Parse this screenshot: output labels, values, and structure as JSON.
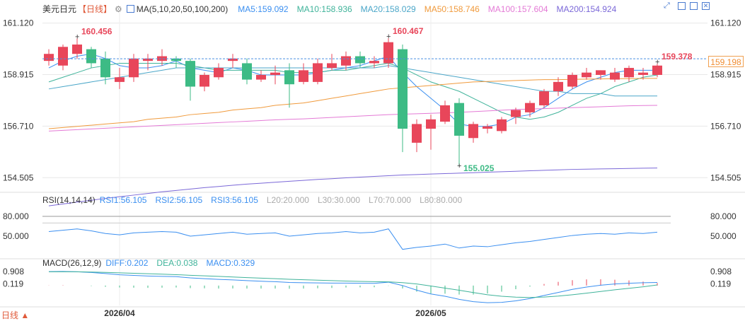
{
  "header": {
    "symbol": "美元日元",
    "period": "【日线】",
    "ma_label": "MA(5,10,20,50,100,200)",
    "ma_values": [
      {
        "label": "MA5:159.092",
        "color": "#3b8ff0"
      },
      {
        "label": "MA10:158.936",
        "color": "#3fb39a"
      },
      {
        "label": "MA20:158.029",
        "color": "#4aa6c8"
      },
      {
        "label": "MA50:158.746",
        "color": "#f09a3c"
      },
      {
        "label": "MA100:157.604",
        "color": "#e47ad6"
      },
      {
        "label": "MA200:154.924",
        "color": "#7b68d8"
      }
    ]
  },
  "rsi_header": {
    "label": "RSI(14,14,14)",
    "values": [
      {
        "label": "RSI1:56.105",
        "color": "#3b8ff0"
      },
      {
        "label": "RSI2:56.105",
        "color": "#3b8ff0"
      },
      {
        "label": "RSI3:56.105",
        "color": "#3b8ff0"
      },
      {
        "label": "L20:20.000",
        "color": "#aaaaaa"
      },
      {
        "label": "L30:30.000",
        "color": "#aaaaaa"
      },
      {
        "label": "L70:70.000",
        "color": "#aaaaaa"
      },
      {
        "label": "L80:80.000",
        "color": "#aaaaaa"
      }
    ]
  },
  "macd_header": {
    "label": "MACD(26,12,9)",
    "values": [
      {
        "label": "DIFF:0.202",
        "color": "#3b8ff0"
      },
      {
        "label": "DEA:0.038",
        "color": "#3fb39a"
      },
      {
        "label": "MACD:0.329",
        "color": "#3b8ff0"
      }
    ]
  },
  "current_price_tag": "159.198",
  "period_button": "日线 ▲",
  "icons": [
    "expand-icon",
    "indicator-icon",
    "settings-icon",
    "close-icon"
  ],
  "colors": {
    "up": "#e8465a",
    "down": "#3dbb85",
    "grid": "#e8e8e8",
    "axis_text": "#333333",
    "last_line": "#4a90e2"
  },
  "chart_data": [
    {
      "type": "candlestick",
      "name": "price",
      "x_labels": [
        "2026/04",
        "2026/05"
      ],
      "y_ticks": [
        161.12,
        158.915,
        156.71,
        154.505
      ],
      "ylim": [
        154.0,
        161.5
      ],
      "annotations": [
        {
          "text": "160.456",
          "candle": 2,
          "kind": "high"
        },
        {
          "text": "160.467",
          "candle": 24,
          "kind": "high"
        },
        {
          "text": "155.025",
          "candle": 29,
          "kind": "low"
        },
        {
          "text": "159.378",
          "candle": 43,
          "kind": "high"
        }
      ],
      "last_price": 159.198,
      "candles": [
        {
          "o": 159.5,
          "h": 160.0,
          "l": 159.3,
          "c": 159.8
        },
        {
          "o": 159.3,
          "h": 160.2,
          "l": 159.1,
          "c": 160.1
        },
        {
          "o": 159.8,
          "h": 160.456,
          "l": 159.6,
          "c": 160.2
        },
        {
          "o": 160.0,
          "h": 160.1,
          "l": 159.2,
          "c": 159.4
        },
        {
          "o": 159.6,
          "h": 159.9,
          "l": 158.5,
          "c": 158.8
        },
        {
          "o": 158.6,
          "h": 159.2,
          "l": 158.3,
          "c": 158.8
        },
        {
          "o": 158.8,
          "h": 159.8,
          "l": 158.6,
          "c": 159.6
        },
        {
          "o": 159.5,
          "h": 159.8,
          "l": 159.1,
          "c": 159.6
        },
        {
          "o": 159.5,
          "h": 160.0,
          "l": 159.3,
          "c": 159.7
        },
        {
          "o": 159.6,
          "h": 159.7,
          "l": 159.2,
          "c": 159.5
        },
        {
          "o": 159.5,
          "h": 159.6,
          "l": 157.8,
          "c": 158.4
        },
        {
          "o": 158.4,
          "h": 159.0,
          "l": 158.2,
          "c": 158.9
        },
        {
          "o": 158.8,
          "h": 159.4,
          "l": 158.7,
          "c": 159.2
        },
        {
          "o": 159.5,
          "h": 159.8,
          "l": 159.2,
          "c": 159.6
        },
        {
          "o": 159.4,
          "h": 159.6,
          "l": 158.5,
          "c": 158.7
        },
        {
          "o": 158.7,
          "h": 159.1,
          "l": 158.6,
          "c": 158.9
        },
        {
          "o": 158.9,
          "h": 159.3,
          "l": 158.5,
          "c": 159.0
        },
        {
          "o": 159.1,
          "h": 159.4,
          "l": 157.5,
          "c": 158.5
        },
        {
          "o": 158.6,
          "h": 159.4,
          "l": 158.5,
          "c": 159.1
        },
        {
          "o": 158.6,
          "h": 159.6,
          "l": 158.5,
          "c": 159.4
        },
        {
          "o": 159.2,
          "h": 159.8,
          "l": 159.1,
          "c": 159.4
        },
        {
          "o": 159.3,
          "h": 159.9,
          "l": 159.1,
          "c": 159.7
        },
        {
          "o": 159.7,
          "h": 159.9,
          "l": 159.2,
          "c": 159.4
        },
        {
          "o": 159.4,
          "h": 159.7,
          "l": 159.2,
          "c": 159.5
        },
        {
          "o": 159.4,
          "h": 160.467,
          "l": 159.2,
          "c": 160.3
        },
        {
          "o": 160.0,
          "h": 160.2,
          "l": 155.6,
          "c": 156.6
        },
        {
          "o": 156.0,
          "h": 157.0,
          "l": 155.6,
          "c": 156.8
        },
        {
          "o": 156.6,
          "h": 157.2,
          "l": 155.7,
          "c": 157.0
        },
        {
          "o": 156.9,
          "h": 157.8,
          "l": 156.8,
          "c": 157.6
        },
        {
          "o": 157.7,
          "h": 157.9,
          "l": 155.025,
          "c": 156.3
        },
        {
          "o": 156.2,
          "h": 156.9,
          "l": 156.0,
          "c": 156.8
        },
        {
          "o": 156.6,
          "h": 156.8,
          "l": 156.4,
          "c": 156.7
        },
        {
          "o": 156.5,
          "h": 157.1,
          "l": 156.4,
          "c": 157.0
        },
        {
          "o": 157.1,
          "h": 157.5,
          "l": 156.8,
          "c": 157.4
        },
        {
          "o": 157.3,
          "h": 157.8,
          "l": 157.1,
          "c": 157.7
        },
        {
          "o": 157.6,
          "h": 158.3,
          "l": 157.5,
          "c": 158.2
        },
        {
          "o": 158.2,
          "h": 158.8,
          "l": 158.0,
          "c": 158.6
        },
        {
          "o": 158.4,
          "h": 159.0,
          "l": 158.3,
          "c": 158.9
        },
        {
          "o": 158.8,
          "h": 159.2,
          "l": 158.7,
          "c": 159.0
        },
        {
          "o": 158.9,
          "h": 159.1,
          "l": 158.7,
          "c": 159.1
        },
        {
          "o": 158.7,
          "h": 159.2,
          "l": 158.6,
          "c": 159.0
        },
        {
          "o": 158.8,
          "h": 159.3,
          "l": 158.6,
          "c": 159.2
        },
        {
          "o": 158.9,
          "h": 159.2,
          "l": 158.7,
          "c": 159.0
        },
        {
          "o": 158.9,
          "h": 159.378,
          "l": 158.8,
          "c": 159.3
        }
      ],
      "series": [
        {
          "name": "MA5",
          "color": "#3b8ff0",
          "values": [
            159.2,
            159.5,
            159.7,
            159.8,
            159.6,
            159.3,
            159.2,
            159.2,
            159.3,
            159.5,
            159.2,
            159.1,
            159.0,
            159.2,
            159.1,
            158.9,
            158.9,
            158.9,
            158.9,
            159.0,
            159.1,
            159.2,
            159.3,
            159.5,
            159.7,
            159.0,
            158.4,
            157.9,
            157.4,
            156.8,
            156.7,
            156.7,
            156.8,
            157.1,
            157.2,
            157.5,
            157.9,
            158.3,
            158.6,
            158.8,
            159.0,
            159.1,
            159.1,
            159.1
          ]
        },
        {
          "name": "MA10",
          "color": "#3fb39a",
          "values": [
            158.6,
            158.8,
            159.0,
            159.2,
            159.3,
            159.4,
            159.4,
            159.4,
            159.4,
            159.4,
            159.3,
            159.2,
            159.1,
            159.1,
            159.1,
            159.1,
            159.1,
            159.0,
            159.0,
            159.0,
            159.1,
            159.1,
            159.2,
            159.3,
            159.4,
            159.2,
            158.9,
            158.6,
            158.4,
            158.2,
            157.9,
            157.6,
            157.3,
            157.1,
            157.0,
            157.1,
            157.3,
            157.6,
            157.9,
            158.1,
            158.4,
            158.6,
            158.8,
            158.9
          ]
        },
        {
          "name": "MA20",
          "color": "#4aa6c8",
          "values": [
            158.3,
            158.4,
            158.5,
            158.6,
            158.7,
            158.8,
            158.9,
            159.0,
            159.1,
            159.2,
            159.2,
            159.2,
            159.2,
            159.2,
            159.2,
            159.2,
            159.2,
            159.2,
            159.2,
            159.2,
            159.2,
            159.2,
            159.2,
            159.2,
            159.3,
            159.2,
            159.1,
            159.0,
            158.9,
            158.8,
            158.7,
            158.6,
            158.5,
            158.4,
            158.3,
            158.2,
            158.2,
            158.1,
            158.1,
            158.1,
            158.0,
            158.0,
            158.0,
            158.0
          ]
        },
        {
          "name": "MA50",
          "color": "#f09a3c",
          "values": [
            156.6,
            156.65,
            156.7,
            156.75,
            156.8,
            156.85,
            156.9,
            157.0,
            157.05,
            157.1,
            157.2,
            157.25,
            157.3,
            157.4,
            157.45,
            157.5,
            157.6,
            157.65,
            157.7,
            157.8,
            157.9,
            158.0,
            158.1,
            158.2,
            158.3,
            158.35,
            158.4,
            158.45,
            158.5,
            158.55,
            158.6,
            158.62,
            158.64,
            158.66,
            158.68,
            158.7,
            158.7,
            158.71,
            158.72,
            158.73,
            158.74,
            158.74,
            158.75,
            158.75
          ]
        },
        {
          "name": "MA100",
          "color": "#e47ad6",
          "values": [
            156.5,
            156.53,
            156.56,
            156.59,
            156.62,
            156.65,
            156.68,
            156.71,
            156.74,
            156.77,
            156.8,
            156.83,
            156.86,
            156.89,
            156.92,
            156.95,
            156.98,
            157.0,
            157.02,
            157.05,
            157.08,
            157.11,
            157.14,
            157.17,
            157.2,
            157.22,
            157.24,
            157.26,
            157.28,
            157.3,
            157.33,
            157.36,
            157.39,
            157.42,
            157.44,
            157.46,
            157.48,
            157.5,
            157.52,
            157.54,
            157.56,
            157.58,
            157.59,
            157.6
          ]
        },
        {
          "name": "MA200",
          "color": "#7b68d8",
          "values": [
            153.3,
            153.38,
            153.46,
            153.54,
            153.62,
            153.69,
            153.76,
            153.83,
            153.9,
            153.96,
            154.02,
            154.08,
            154.13,
            154.18,
            154.23,
            154.27,
            154.31,
            154.35,
            154.39,
            154.43,
            154.46,
            154.5,
            154.53,
            154.56,
            154.59,
            154.62,
            154.64,
            154.66,
            154.68,
            154.7,
            154.72,
            154.74,
            154.76,
            154.78,
            154.8,
            154.82,
            154.84,
            154.86,
            154.87,
            154.88,
            154.89,
            154.9,
            154.91,
            154.92
          ]
        }
      ]
    },
    {
      "type": "line",
      "name": "RSI",
      "y_ticks": [
        80.0,
        50.0
      ],
      "ylim": [
        20,
        95
      ],
      "series": [
        {
          "name": "RSI1",
          "color": "#3b8ff0",
          "values": [
            57,
            59,
            61,
            58,
            54,
            52,
            55,
            56,
            57,
            56,
            50,
            52,
            54,
            56,
            53,
            54,
            55,
            50,
            52,
            54,
            55,
            57,
            55,
            56,
            61,
            30,
            33,
            35,
            38,
            32,
            35,
            34,
            37,
            40,
            42,
            45,
            48,
            51,
            53,
            54,
            53,
            55,
            54,
            56
          ]
        }
      ],
      "levels": [
        {
          "value": 80,
          "color": "#999999"
        },
        {
          "value": 70,
          "color": "#cccccc"
        }
      ]
    },
    {
      "type": "macd",
      "name": "MACD",
      "y_ticks": [
        0.908,
        0.119
      ],
      "ylim": [
        -1.3,
        1.1
      ],
      "diff": [
        0.91,
        0.92,
        0.9,
        0.85,
        0.78,
        0.7,
        0.66,
        0.62,
        0.6,
        0.58,
        0.5,
        0.45,
        0.4,
        0.37,
        0.32,
        0.28,
        0.25,
        0.2,
        0.18,
        0.17,
        0.16,
        0.16,
        0.15,
        0.14,
        0.22,
        0.0,
        -0.3,
        -0.55,
        -0.7,
        -0.9,
        -1.05,
        -1.12,
        -1.1,
        -1.0,
        -0.85,
        -0.65,
        -0.45,
        -0.25,
        -0.1,
        0.02,
        0.1,
        0.15,
        0.18,
        0.2
      ],
      "dea": [
        0.9,
        0.9,
        0.9,
        0.88,
        0.86,
        0.83,
        0.8,
        0.77,
        0.74,
        0.71,
        0.67,
        0.63,
        0.6,
        0.56,
        0.52,
        0.48,
        0.45,
        0.41,
        0.38,
        0.35,
        0.32,
        0.29,
        0.27,
        0.25,
        0.24,
        0.19,
        0.1,
        -0.03,
        -0.17,
        -0.31,
        -0.46,
        -0.6,
        -0.7,
        -0.76,
        -0.78,
        -0.75,
        -0.69,
        -0.6,
        -0.5,
        -0.39,
        -0.28,
        -0.18,
        -0.08,
        0.04
      ],
      "hist": [
        0.02,
        0.04,
        0.0,
        -0.06,
        -0.16,
        -0.26,
        -0.28,
        -0.3,
        -0.28,
        -0.26,
        -0.34,
        -0.36,
        -0.4,
        -0.38,
        -0.4,
        -0.4,
        -0.4,
        -0.42,
        -0.4,
        -0.36,
        -0.32,
        -0.26,
        -0.24,
        -0.22,
        -0.04,
        -0.38,
        -0.8,
        -1.04,
        -1.06,
        -1.18,
        -1.18,
        -1.04,
        -0.8,
        -0.48,
        -0.14,
        0.2,
        0.48,
        0.7,
        0.8,
        0.82,
        0.76,
        0.66,
        0.52,
        0.33
      ],
      "diff_color": "#3b8ff0",
      "dea_color": "#3fb39a"
    }
  ]
}
